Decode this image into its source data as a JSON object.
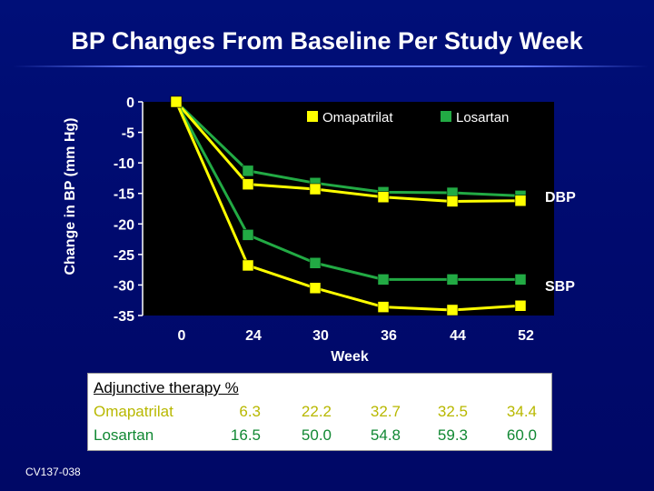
{
  "title": "BP Changes From Baseline Per Study Week",
  "footer_code": "CV137-038",
  "colors": {
    "background": "#000a6e",
    "plot_background": "#000000",
    "omapatrilat": "#ffff00",
    "losartan": "#22aa44",
    "table_background": "#ffffff",
    "table_text": "#000000",
    "omapatrilat_label_text": "#e8e800",
    "losartan_label_text": "#118833"
  },
  "chart_data": {
    "type": "line",
    "title": "BP Changes From Baseline Per Study Week",
    "xlabel": "Week",
    "ylabel": "Change in BP (mm Hg)",
    "categories": [
      "0",
      "24",
      "30",
      "36",
      "44",
      "52"
    ],
    "ylim": [
      -35,
      0
    ],
    "yticks": [
      "0",
      "-5",
      "-10",
      "-15",
      "-20",
      "-25",
      "-30",
      "-35"
    ],
    "ytick_values": [
      0,
      -5,
      -10,
      -15,
      -20,
      -25,
      -30,
      -35
    ],
    "legend": [
      "Omapatrilat",
      "Losartan"
    ],
    "legend_position": "top-right",
    "grid": false,
    "series": [
      {
        "name": "Omapatrilat",
        "group": "DBP",
        "color": "#ffff00",
        "values": [
          0,
          -13.5,
          -14.3,
          -15.6,
          -16.3,
          -16.2
        ]
      },
      {
        "name": "Losartan",
        "group": "DBP",
        "color": "#22aa44",
        "values": [
          0,
          -11.3,
          -13.3,
          -14.8,
          -14.9,
          -15.4
        ]
      },
      {
        "name": "Omapatrilat",
        "group": "SBP",
        "color": "#ffff00",
        "values": [
          0,
          -26.8,
          -30.5,
          -33.6,
          -34.1,
          -33.4
        ]
      },
      {
        "name": "Losartan",
        "group": "SBP",
        "color": "#22aa44",
        "values": [
          0,
          -21.8,
          -26.4,
          -29.1,
          -29.1,
          -29.1
        ]
      }
    ],
    "annotations": [
      "DBP",
      "SBP"
    ]
  },
  "table": {
    "header": "Adjunctive therapy %",
    "rows": [
      {
        "label": "Omapatrilat",
        "values": [
          "6.3",
          "22.2",
          "32.7",
          "32.5",
          "34.4"
        ]
      },
      {
        "label": "Losartan",
        "values": [
          "16.5",
          "50.0",
          "54.8",
          "59.3",
          "60.0"
        ]
      }
    ]
  }
}
